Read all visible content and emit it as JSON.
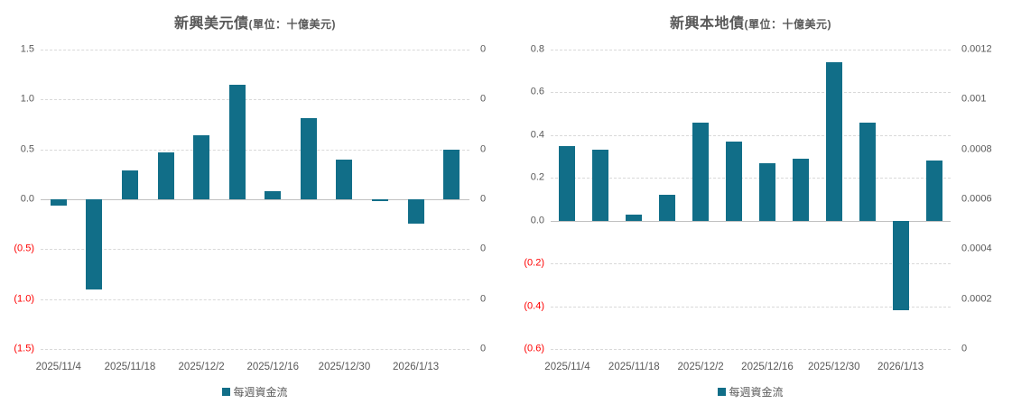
{
  "chart_data": [
    {
      "type": "bar",
      "title": "新興美元債",
      "subtitle": "(單位：十億美元)",
      "legend": [
        "每週資金流"
      ],
      "legend_position": "bottom",
      "grid": true,
      "bar_color": "#116e88",
      "negative_label_color": "#ff0000",
      "ylim_left": [
        -1.5,
        1.5
      ],
      "y_left_ticklabels": [
        "1.5",
        "1.0",
        "0.5",
        "0.0",
        "(0.5)",
        "(1.0)",
        "(1.5)"
      ],
      "y_right_ticklabels": [
        "0",
        "0",
        "0",
        "0",
        "0",
        "0",
        "0"
      ],
      "x_ticklabels": [
        "2025/11/4",
        "2025/11/18",
        "2025/12/2",
        "2025/12/16",
        "2025/12/30",
        "2026/1/13"
      ],
      "x_tick_positions": [
        0,
        2,
        4,
        6,
        8,
        10
      ],
      "values": [
        -0.06,
        -0.9,
        0.29,
        0.47,
        0.64,
        1.15,
        0.08,
        0.81,
        0.4,
        -0.02,
        -0.24,
        0.5
      ]
    },
    {
      "type": "bar",
      "title": "新興本地債",
      "subtitle": "(單位：十億美元)",
      "legend": [
        "每週資金流"
      ],
      "legend_position": "bottom",
      "grid": true,
      "bar_color": "#116e88",
      "negative_label_color": "#ff0000",
      "ylim_left": [
        -0.6,
        0.8
      ],
      "y_left_ticklabels": [
        "0.8",
        "0.6",
        "0.4",
        "0.2",
        "0.0",
        "(0.2)",
        "(0.4)",
        "(0.6)"
      ],
      "y_right_ticklabels": [
        "0.0012",
        "0.001",
        "0.0008",
        "0.0006",
        "0.0004",
        "0.0002",
        "0"
      ],
      "x_ticklabels": [
        "2025/11/4",
        "2025/11/18",
        "2025/12/2",
        "2025/12/16",
        "2025/12/30",
        "2026/1/13"
      ],
      "x_tick_positions": [
        0,
        2,
        4,
        6,
        8,
        10
      ],
      "values": [
        0.35,
        0.33,
        0.03,
        0.12,
        0.46,
        0.37,
        0.27,
        0.29,
        0.74,
        0.46,
        -0.42,
        0.28
      ]
    }
  ]
}
